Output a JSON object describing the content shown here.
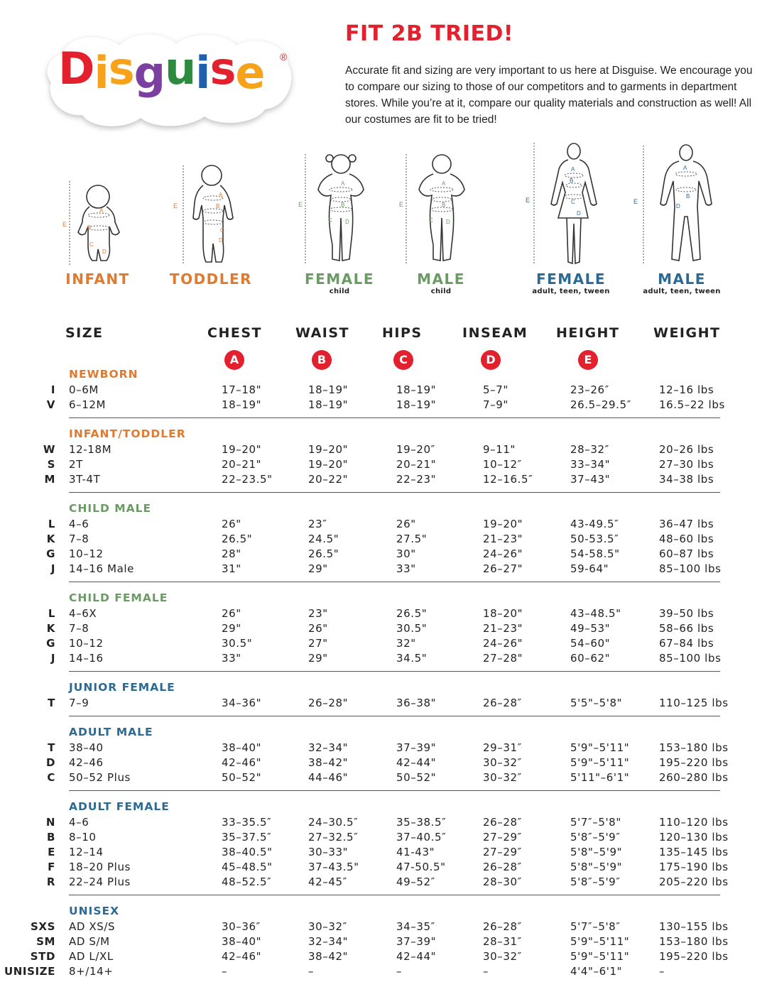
{
  "brand": {
    "logo_letters": [
      {
        "ch": "D",
        "color": "#e2202e"
      },
      {
        "ch": "i",
        "color": "#f7a21b"
      },
      {
        "ch": "s",
        "color": "#f7a21b"
      },
      {
        "ch": "g",
        "color": "#7b3fa0"
      },
      {
        "ch": "u",
        "color": "#2e8a3e"
      },
      {
        "ch": "i",
        "color": "#1f5fb0"
      },
      {
        "ch": "s",
        "color": "#e2202e"
      },
      {
        "ch": "e",
        "color": "#f7a21b"
      }
    ],
    "registered_mark": "®"
  },
  "header": {
    "title": "FIT 2B TRIED!",
    "intro": "Accurate fit and sizing are very important to us here at Disguise. We encourage you to compare our sizing to those of our competitors and to garments in department stores. While you’re at it, compare our quality materials and construction as well! All our costumes are fit to be tried!"
  },
  "colors": {
    "red": "#e2202e",
    "infant": "#e07a2e",
    "child": "#6b9a64",
    "adult": "#2d6a93"
  },
  "figures": [
    {
      "label": "INFANT",
      "sub": "",
      "color": "#e07a2e"
    },
    {
      "label": "TODDLER",
      "sub": "",
      "color": "#e07a2e"
    },
    {
      "label": "FEMALE",
      "sub": "child",
      "color": "#6b9a64"
    },
    {
      "label": "MALE",
      "sub": "child",
      "color": "#6b9a64"
    },
    {
      "label": "FEMALE",
      "sub": "adult, teen, tween",
      "color": "#2d6a93"
    },
    {
      "label": "MALE",
      "sub": "adult, teen, tween",
      "color": "#2d6a93"
    }
  ],
  "figure_markers": {
    "a": "A",
    "b": "B",
    "c": "C",
    "d": "D",
    "e": "E"
  },
  "table": {
    "headers": [
      "SIZE",
      "CHEST",
      "WAIST",
      "HIPS",
      "INSEAM",
      "HEIGHT",
      "WEIGHT"
    ],
    "badges": [
      "A",
      "B",
      "C",
      "D",
      "E"
    ],
    "sections": [
      {
        "title": "NEWBORN",
        "color": "#e07a2e",
        "rows": [
          [
            "I",
            "0–6M",
            "17–18\"",
            "18–19\"",
            "18–19\"",
            "5–7\"",
            "23–26″",
            "12–16 lbs"
          ],
          [
            "V",
            "6–12M",
            "18–19\"",
            "18–19\"",
            "18–19\"",
            "7–9\"",
            "26.5–29.5″",
            "16.5–22 lbs"
          ]
        ]
      },
      {
        "title": "INFANT/TODDLER",
        "color": "#e07a2e",
        "rows": [
          [
            "W",
            "12-18M",
            "19–20\"",
            "19–20\"",
            "19–20″",
            "9–11\"",
            "28–32″",
            "20–26 lbs"
          ],
          [
            "S",
            "2T",
            "20–21\"",
            "19–20\"",
            "20–21\"",
            "10–12″",
            "33–34\"",
            "27–30 lbs"
          ],
          [
            "M",
            "3T-4T",
            "22–23.5\"",
            "20–22\"",
            "22–23\"",
            "12–16.5″",
            "37–43\"",
            "34–38 lbs"
          ]
        ]
      },
      {
        "title": "CHILD MALE",
        "color": "#6b9a64",
        "rows": [
          [
            "L",
            "4–6",
            "26\"",
            "23″",
            "26\"",
            "19–20\"",
            "43-49.5″",
            "36–47 lbs"
          ],
          [
            "K",
            "7–8",
            "26.5\"",
            "24.5\"",
            "27.5\"",
            "21–23\"",
            "50-53.5″",
            "48–60 lbs"
          ],
          [
            "G",
            "10–12",
            "28\"",
            "26.5\"",
            "30\"",
            "24–26\"",
            "54-58.5\"",
            "60–87 lbs"
          ],
          [
            "J",
            "14–16 Male",
            "31\"",
            "29\"",
            "33\"",
            "26–27\"",
            "59-64\"",
            "85–100 lbs"
          ]
        ]
      },
      {
        "title": "CHILD FEMALE",
        "color": "#6b9a64",
        "rows": [
          [
            "L",
            "4–6X",
            "26\"",
            "23\"",
            "26.5\"",
            "18–20\"",
            "43–48.5\"",
            "39–50 lbs"
          ],
          [
            "K",
            "7–8",
            "29\"",
            "26\"",
            "30.5\"",
            "21–23\"",
            "49–53\"",
            "58–66 lbs"
          ],
          [
            "G",
            "10–12",
            "30.5\"",
            "27\"",
            "32\"",
            "24–26\"",
            "54–60\"",
            "67–84 lbs"
          ],
          [
            "J",
            "14–16",
            "33\"",
            "29\"",
            "34.5\"",
            "27–28\"",
            "60–62\"",
            "85–100 lbs"
          ]
        ]
      },
      {
        "title": "JUNIOR FEMALE",
        "color": "#2d6a93",
        "rows": [
          [
            "T",
            "7–9",
            "34–36\"",
            "26–28\"",
            "36–38\"",
            "26–28″",
            "5'5\"–5'8\"",
            "110–125 lbs"
          ]
        ]
      },
      {
        "title": "ADULT MALE",
        "color": "#2d6a93",
        "rows": [
          [
            "T",
            "38–40",
            "38–40\"",
            "32–34\"",
            "37–39\"",
            "29–31″",
            "5'9\"–5'11\"",
            "153–180 lbs"
          ],
          [
            "D",
            "42–46",
            "42–46\"",
            "38–42\"",
            "42–44\"",
            "30–32″",
            "5'9\"–5'11\"",
            "195–220 lbs"
          ],
          [
            "C",
            "50–52 Plus",
            "50–52\"",
            "44–46\"",
            "50–52\"",
            "30–32″",
            "5'11\"–6'1\"",
            "260–280 lbs"
          ]
        ]
      },
      {
        "title": "ADULT FEMALE",
        "color": "#2d6a93",
        "rows": [
          [
            "N",
            "4–6",
            "33–35.5″",
            "24–30.5″",
            "35–38.5″",
            "26–28″",
            "5'7″–5'8\"",
            "110–120 lbs"
          ],
          [
            "B",
            "8–10",
            "35–37.5″",
            "27–32.5″",
            "37–40.5″",
            "27–29″",
            "5'8″–5'9″",
            "120–130 lbs"
          ],
          [
            "E",
            "12–14",
            "38–40.5\"",
            "30–33\"",
            "41-43\"",
            "27–29″",
            "5'8\"–5'9\"",
            "135–145 lbs"
          ],
          [
            "F",
            "18–20 Plus",
            "45–48.5\"",
            "37–43.5\"",
            "47-50.5\"",
            "26–28″",
            "5'8\"–5'9\"",
            "175–190 lbs"
          ],
          [
            "R",
            "22–24 Plus",
            "48–52.5″",
            "42–45″",
            "49–52″",
            "28–30″",
            "5'8″–5'9″",
            "205–220 lbs"
          ]
        ]
      },
      {
        "title": "UNISEX",
        "color": "#2d6a93",
        "rows": [
          [
            "SXS",
            "AD XS/S",
            "30–36″",
            "30–32″",
            "34–35″",
            "26–28″",
            "5'7″–5'8″",
            "130–155 lbs"
          ],
          [
            "SM",
            "AD S/M",
            "38–40\"",
            "32–34\"",
            "37–39\"",
            "28–31″",
            "5'9\"–5'11\"",
            "153–180 lbs"
          ],
          [
            "STD",
            "AD L/XL",
            "42–46\"",
            "38–42\"",
            "42–44\"",
            "30–32″",
            "5'9\"–5'11\"",
            "195–220 lbs"
          ],
          [
            "UNISIZE",
            "8+/14+",
            "–",
            "–",
            "–",
            "–",
            "4'4\"–6'1\"",
            "–"
          ]
        ]
      }
    ]
  }
}
